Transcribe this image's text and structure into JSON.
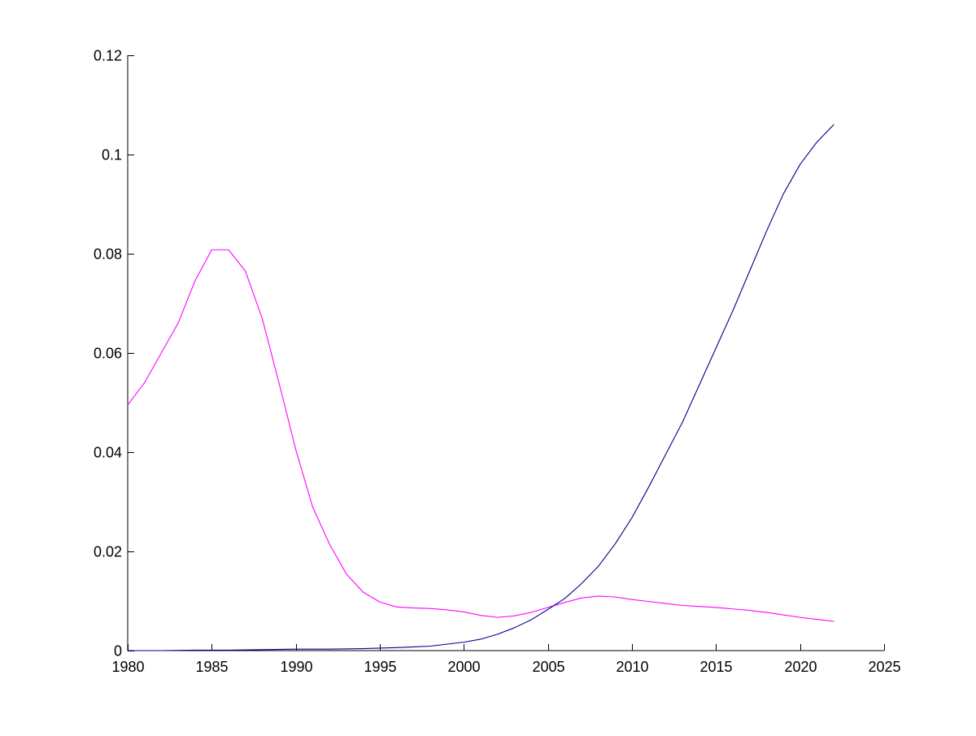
{
  "chart_data": {
    "type": "line",
    "title": "",
    "xlabel": "",
    "ylabel": "",
    "xlim": [
      1980,
      2025
    ],
    "ylim": [
      0,
      0.12
    ],
    "grid": false,
    "legend": null,
    "x_ticks": [
      1980,
      1985,
      1990,
      1995,
      2000,
      2005,
      2010,
      2015,
      2020,
      2025
    ],
    "x_tick_labels": [
      "1980",
      "1985",
      "1990",
      "1995",
      "2000",
      "2005",
      "2010",
      "2015",
      "2020",
      "2025"
    ],
    "y_ticks": [
      0,
      0.02,
      0.04,
      0.06,
      0.08,
      0.1,
      0.12
    ],
    "y_tick_labels": [
      "0",
      "0.02",
      "0.04",
      "0.06",
      "0.08",
      "0.1",
      "0.12"
    ],
    "series": [
      {
        "color": "#ff00ff",
        "points": [
          [
            1980,
            0.0495
          ],
          [
            1981,
            0.054
          ],
          [
            1982,
            0.06
          ],
          [
            1983,
            0.066
          ],
          [
            1984,
            0.0745
          ],
          [
            1985,
            0.0808
          ],
          [
            1986,
            0.0808
          ],
          [
            1987,
            0.0765
          ],
          [
            1988,
            0.067
          ],
          [
            1989,
            0.054
          ],
          [
            1990,
            0.0405
          ],
          [
            1991,
            0.029
          ],
          [
            1992,
            0.0215
          ],
          [
            1993,
            0.0155
          ],
          [
            1994,
            0.0118
          ],
          [
            1995,
            0.0098
          ],
          [
            1996,
            0.0088
          ],
          [
            1997,
            0.0086
          ],
          [
            1998,
            0.0085
          ],
          [
            1999,
            0.0082
          ],
          [
            2000,
            0.0078
          ],
          [
            2001,
            0.0071
          ],
          [
            2002,
            0.0067
          ],
          [
            2003,
            0.007
          ],
          [
            2004,
            0.0077
          ],
          [
            2005,
            0.0087
          ],
          [
            2006,
            0.0097
          ],
          [
            2007,
            0.0106
          ],
          [
            2008,
            0.011
          ],
          [
            2009,
            0.0108
          ],
          [
            2010,
            0.0103
          ],
          [
            2011,
            0.0099
          ],
          [
            2012,
            0.0095
          ],
          [
            2013,
            0.0091
          ],
          [
            2014,
            0.0089
          ],
          [
            2015,
            0.0087
          ],
          [
            2016,
            0.0084
          ],
          [
            2017,
            0.0081
          ],
          [
            2018,
            0.0077
          ],
          [
            2019,
            0.0072
          ],
          [
            2020,
            0.0067
          ],
          [
            2021,
            0.0063
          ],
          [
            2022,
            0.0059
          ]
        ]
      },
      {
        "color": "#00008b",
        "points": [
          [
            1980,
            0.0
          ],
          [
            1982,
            0.0
          ],
          [
            1984,
            0.0001
          ],
          [
            1986,
            0.0001
          ],
          [
            1988,
            0.0002
          ],
          [
            1990,
            0.0003
          ],
          [
            1992,
            0.0003
          ],
          [
            1994,
            0.0004
          ],
          [
            1996,
            0.0006
          ],
          [
            1998,
            0.0009
          ],
          [
            2000,
            0.0017
          ],
          [
            2001,
            0.0023
          ],
          [
            2002,
            0.0033
          ],
          [
            2003,
            0.0046
          ],
          [
            2004,
            0.0062
          ],
          [
            2005,
            0.0083
          ],
          [
            2006,
            0.0105
          ],
          [
            2007,
            0.0135
          ],
          [
            2008,
            0.017
          ],
          [
            2009,
            0.0215
          ],
          [
            2010,
            0.0268
          ],
          [
            2011,
            0.033
          ],
          [
            2012,
            0.0395
          ],
          [
            2013,
            0.046
          ],
          [
            2014,
            0.0535
          ],
          [
            2015,
            0.061
          ],
          [
            2016,
            0.0685
          ],
          [
            2017,
            0.0765
          ],
          [
            2018,
            0.0845
          ],
          [
            2019,
            0.092
          ],
          [
            2020,
            0.098
          ],
          [
            2021,
            0.1025
          ],
          [
            2022,
            0.106
          ]
        ]
      }
    ]
  }
}
